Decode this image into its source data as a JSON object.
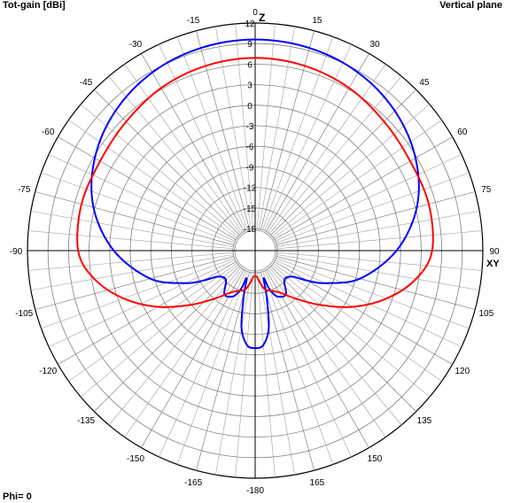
{
  "header": {
    "title": "Tot-gain [dBi]",
    "plane": "Vertical plane",
    "footer": "Phi= 0"
  },
  "axes": {
    "top_label": "Z",
    "right_label": "XY"
  },
  "chart_data": {
    "type": "polar",
    "title": "",
    "radial_unit": "dBi",
    "radial_range": [
      -18,
      12
    ],
    "radial_ticks": [
      12,
      9,
      6,
      3,
      0,
      -3,
      -6,
      -9,
      -12,
      -15,
      -18
    ],
    "angle_ticks": [
      0,
      15,
      30,
      45,
      60,
      75,
      90,
      105,
      120,
      135,
      150,
      165,
      -180,
      -165,
      -150,
      -135,
      -120,
      -105,
      -90,
      -75,
      -60,
      -45,
      -30,
      -15
    ],
    "grid": true,
    "angle_zero": "top",
    "series": [
      {
        "color": "#0000ff",
        "points": [
          [
            0,
            9.6
          ],
          [
            15,
            9.4
          ],
          [
            30,
            8.8
          ],
          [
            45,
            7.6
          ],
          [
            60,
            5.8
          ],
          [
            75,
            3.2
          ],
          [
            90,
            -0.6
          ],
          [
            105,
            -5.4
          ],
          [
            115,
            -10.0
          ],
          [
            120,
            -12.5
          ],
          [
            125,
            -14.6
          ],
          [
            135,
            -15.2
          ],
          [
            145,
            -13.4
          ],
          [
            155,
            -13.9
          ],
          [
            160,
            -15.4
          ],
          [
            163,
            -17.0
          ],
          [
            166,
            -14.3
          ],
          [
            170,
            -9.8
          ],
          [
            175,
            -7.4
          ],
          [
            180,
            -7.0
          ],
          [
            -175,
            -7.4
          ],
          [
            -170,
            -9.8
          ],
          [
            -166,
            -14.3
          ],
          [
            -163,
            -17.0
          ],
          [
            -160,
            -15.4
          ],
          [
            -155,
            -13.9
          ],
          [
            -145,
            -13.4
          ],
          [
            -135,
            -15.2
          ],
          [
            -125,
            -14.6
          ],
          [
            -120,
            -12.5
          ],
          [
            -115,
            -10.0
          ],
          [
            -105,
            -5.4
          ],
          [
            -90,
            -0.6
          ],
          [
            -75,
            3.2
          ],
          [
            -60,
            5.8
          ],
          [
            -45,
            7.6
          ],
          [
            -30,
            8.8
          ],
          [
            -15,
            9.4
          ]
        ]
      },
      {
        "color": "#ff0000",
        "points": [
          [
            0,
            6.9
          ],
          [
            15,
            6.7
          ],
          [
            30,
            6.2
          ],
          [
            45,
            5.4
          ],
          [
            60,
            4.9
          ],
          [
            75,
            5.0
          ],
          [
            90,
            4.6
          ],
          [
            100,
            2.6
          ],
          [
            110,
            -0.8
          ],
          [
            120,
            -4.8
          ],
          [
            130,
            -8.9
          ],
          [
            140,
            -12.1
          ],
          [
            150,
            -14.2
          ],
          [
            160,
            -15.0
          ],
          [
            166,
            -15.4
          ],
          [
            172,
            -16.6
          ],
          [
            176,
            -17.4
          ],
          [
            180,
            -17.5
          ],
          [
            -176,
            -17.4
          ],
          [
            -172,
            -16.6
          ],
          [
            -166,
            -15.4
          ],
          [
            -160,
            -15.0
          ],
          [
            -150,
            -14.2
          ],
          [
            -140,
            -12.1
          ],
          [
            -130,
            -8.9
          ],
          [
            -120,
            -4.8
          ],
          [
            -110,
            -0.8
          ],
          [
            -100,
            2.6
          ],
          [
            -90,
            4.6
          ],
          [
            -75,
            5.0
          ],
          [
            -60,
            4.9
          ],
          [
            -45,
            5.4
          ],
          [
            -30,
            6.2
          ],
          [
            -15,
            6.7
          ]
        ]
      }
    ]
  }
}
